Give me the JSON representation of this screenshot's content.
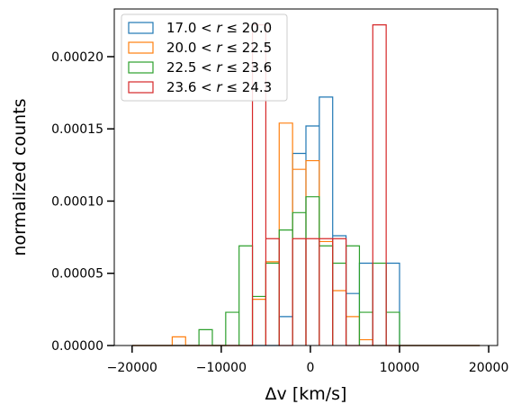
{
  "chart_data": {
    "type": "histogram",
    "xlabel": "Δv [km/s]",
    "ylabel": "normalized counts",
    "xlim": [
      -22000,
      21000
    ],
    "ylim": [
      0,
      0.000233
    ],
    "xticks": [
      -20000,
      -10000,
      0,
      10000,
      20000
    ],
    "xtick_labels": [
      "−20000",
      "−10000",
      "0",
      "10000",
      "20000"
    ],
    "yticks": [
      0,
      5e-05,
      0.0001,
      0.00015,
      0.0002
    ],
    "ytick_labels": [
      "0.00000",
      "0.00005",
      "0.00010",
      "0.00015",
      "0.00020"
    ],
    "legend_position": "upper-left",
    "bin_edges": [
      -20000,
      -18500,
      -17000,
      -15500,
      -14000,
      -12500,
      -11000,
      -9500,
      -8000,
      -6500,
      -5000,
      -3500,
      -2000,
      -500,
      1000,
      2500,
      4000,
      5500,
      7000,
      8500,
      10000,
      11500,
      13000,
      14500,
      16000,
      17500,
      19000
    ],
    "series": [
      {
        "name": "17.0 < r ≤ 20.0",
        "label_prefix": "17.0",
        "label_suffix": "20.0",
        "color": "#1f77b4",
        "values": [
          0,
          0,
          0,
          0,
          0,
          0,
          0,
          0,
          0,
          0,
          0,
          2e-05,
          0.000133,
          0.000152,
          0.000172,
          7.6e-05,
          3.6e-05,
          5.7e-05,
          0,
          5.7e-05,
          0,
          0,
          0,
          0,
          0,
          0
        ]
      },
      {
        "name": "20.0 < r ≤ 22.5",
        "label_prefix": "20.0",
        "label_suffix": "22.5",
        "color": "#ff7f0e",
        "values": [
          0,
          0,
          0,
          6e-06,
          0,
          0,
          0,
          0,
          0,
          3.2e-05,
          5.8e-05,
          0.000154,
          0.000122,
          0.000128,
          7.2e-05,
          3.8e-05,
          2e-05,
          4e-06,
          0,
          0,
          0,
          0,
          0,
          0,
          0,
          0
        ]
      },
      {
        "name": "22.5 < r ≤ 23.6",
        "label_prefix": "22.5",
        "label_suffix": "23.6",
        "color": "#2ca02c",
        "values": [
          0,
          0,
          0,
          0,
          0,
          1.1e-05,
          0,
          2.3e-05,
          6.9e-05,
          3.4e-05,
          5.7e-05,
          8e-05,
          9.2e-05,
          0.000103,
          6.9e-05,
          5.7e-05,
          6.9e-05,
          2.3e-05,
          5.7e-05,
          2.3e-05,
          0,
          0,
          0,
          0,
          0,
          0
        ]
      },
      {
        "name": "23.6 < r ≤ 24.3",
        "label_prefix": "23.6",
        "label_suffix": "24.3",
        "color": "#d62728",
        "values": [
          0,
          0,
          0,
          0,
          0,
          0,
          0,
          0,
          0,
          0.000222,
          7.4e-05,
          0,
          7.4e-05,
          7.4e-05,
          7.4e-05,
          7.4e-05,
          0,
          0,
          0.000222,
          0,
          0,
          0,
          0,
          0,
          0,
          0
        ]
      }
    ]
  }
}
